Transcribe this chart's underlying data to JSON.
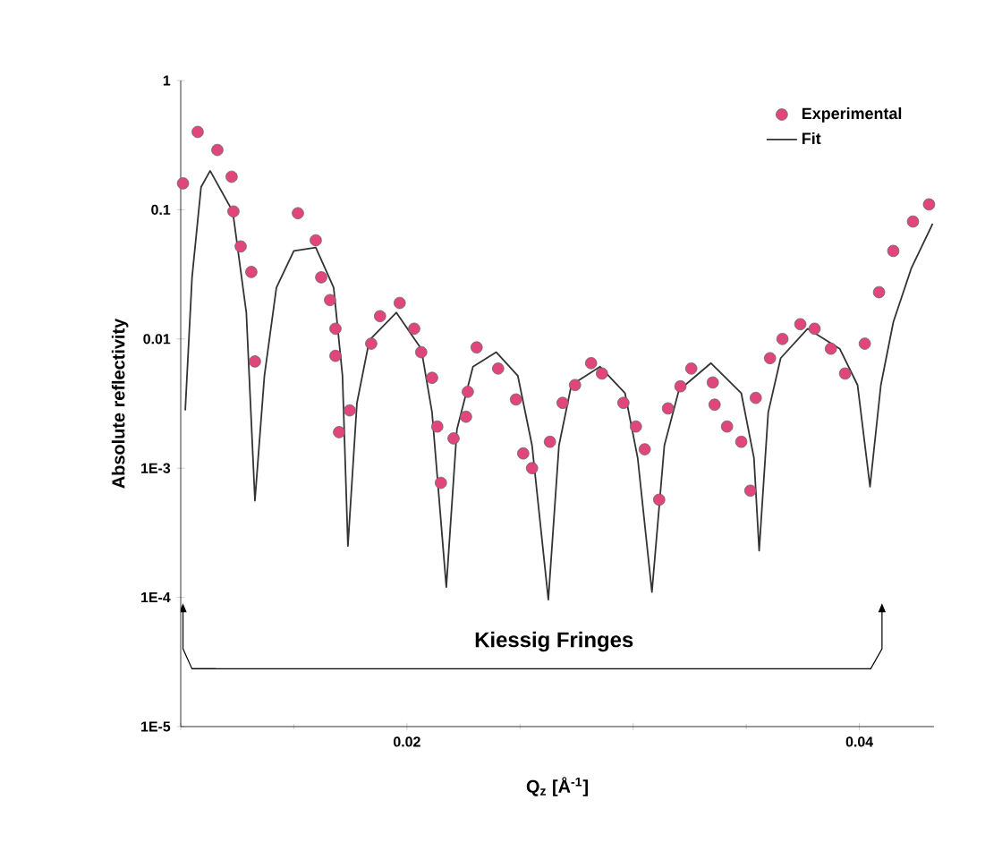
{
  "chart_data": {
    "type": "scatter",
    "xlabel": "Q$_{z}$  [Å$^{-1}$]",
    "ylabel": "Absolute reflectivity",
    "log": "y",
    "xlim": [
      0.01,
      0.0433
    ],
    "ylim": [
      1e-05,
      1
    ],
    "xticks": [
      {
        "value": 0.01,
        "label": null
      },
      0.02,
      {
        "value": 0.03,
        "label": null
      },
      0.04
    ],
    "yticks": [
      1,
      0.1,
      0.01,
      {
        "value": 0.001,
        "label": "1E-3"
      },
      {
        "value": 0.0001,
        "label": "1E-4"
      },
      {
        "value": 1e-05,
        "label": "1E-5"
      }
    ],
    "legend": "top right",
    "grid": false,
    "annotations": [
      "Kiessig Fringes"
    ],
    "series": [
      {
        "name": "Experimental",
        "marker": "circle",
        "color": "#e0457b",
        "x": [
          0.0101,
          0.01075,
          0.01162,
          0.01225,
          0.01233,
          0.01265,
          0.01312,
          0.01328,
          0.01518,
          0.01597,
          0.01621,
          0.0166,
          0.01684,
          0.01684,
          0.017,
          0.01747,
          0.01842,
          0.01881,
          0.01968,
          0.02032,
          0.02063,
          0.02111,
          0.02134,
          0.0215,
          0.02206,
          0.02261,
          0.02269,
          0.02308,
          0.02403,
          0.02482,
          0.02514,
          0.02553,
          0.02632,
          0.02688,
          0.02743,
          0.02814,
          0.02862,
          0.02957,
          0.03012,
          0.03051,
          0.03115,
          0.03154,
          0.03209,
          0.03257,
          0.03352,
          0.0336,
          0.03415,
          0.03478,
          0.03518,
          0.03542,
          0.03605,
          0.0366,
          0.03739,
          0.03802,
          0.03874,
          0.03937,
          0.04024,
          0.04087,
          0.0415,
          0.04237,
          0.04308
        ],
        "values": [
          0.16,
          0.4,
          0.29,
          0.18,
          0.097,
          0.052,
          0.033,
          0.0067,
          0.094,
          0.058,
          0.03,
          0.02,
          0.012,
          0.0074,
          0.0019,
          0.0028,
          0.0092,
          0.015,
          0.019,
          0.012,
          0.0079,
          0.005,
          0.0021,
          0.00077,
          0.0017,
          0.0025,
          0.0039,
          0.0086,
          0.0059,
          0.0034,
          0.0013,
          0.001,
          0.0016,
          0.0032,
          0.0044,
          0.0065,
          0.0054,
          0.0032,
          0.0021,
          0.0014,
          0.00057,
          0.0029,
          0.0043,
          0.0059,
          0.0046,
          0.0031,
          0.0021,
          0.0016,
          0.00067,
          0.0035,
          0.0071,
          0.01,
          0.013,
          0.012,
          0.0084,
          0.0054,
          0.0092,
          0.023,
          0.048,
          0.081,
          0.11
        ]
      },
      {
        "name": "Fit",
        "type": "line",
        "marker": "none",
        "line_style": "solid",
        "color": "#333333",
        "x": [
          0.0102,
          0.0105,
          0.0109,
          0.0113,
          0.0123,
          0.0129,
          0.01328,
          0.0137,
          0.01423,
          0.015,
          0.01597,
          0.01676,
          0.01715,
          0.01739,
          0.01779,
          0.01834,
          0.01953,
          0.02063,
          0.02111,
          0.02174,
          0.02221,
          0.02292,
          0.02395,
          0.0249,
          0.02553,
          0.02625,
          0.02672,
          0.02727,
          0.02854,
          0.02964,
          0.0302,
          0.03083,
          0.03138,
          0.03202,
          0.03344,
          0.03478,
          0.03534,
          0.03557,
          0.03597,
          0.03652,
          0.03771,
          0.03913,
          0.03992,
          0.04047,
          0.04095,
          0.0415,
          0.04229,
          0.04324
        ],
        "values": [
          0.0028,
          0.03,
          0.15,
          0.2,
          0.097,
          0.016,
          0.00056,
          0.0052,
          0.025,
          0.048,
          0.051,
          0.025,
          0.0052,
          0.00025,
          0.0032,
          0.0098,
          0.016,
          0.0084,
          0.0027,
          0.00012,
          0.002,
          0.0061,
          0.0079,
          0.0052,
          0.0015,
          9.6e-05,
          0.0015,
          0.0044,
          0.0061,
          0.0038,
          0.0012,
          0.00011,
          0.0015,
          0.004,
          0.0065,
          0.0038,
          0.0012,
          0.00023,
          0.0027,
          0.0071,
          0.012,
          0.0084,
          0.0044,
          0.00072,
          0.0044,
          0.0135,
          0.035,
          0.078
        ]
      }
    ]
  }
}
